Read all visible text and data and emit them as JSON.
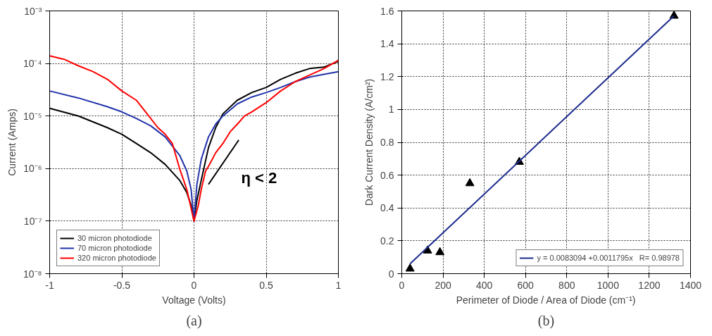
{
  "chart_data": [
    {
      "type": "line",
      "xlabel": "Voltage (Volts)",
      "ylabel": "Current (Amps)",
      "log": "y",
      "grid": true,
      "legend": "bottom left",
      "xlim": [
        -1,
        1
      ],
      "ylim": [
        1e-08,
        0.001
      ],
      "xticks": [
        -1,
        -0.5,
        0,
        0.5,
        1
      ],
      "yticks": [
        {
          "value": 1e-08,
          "label": "10⁻⁸"
        },
        {
          "value": 1e-07,
          "label": "10⁻⁷"
        },
        {
          "value": 1e-06,
          "label": "10⁻⁶"
        },
        {
          "value": 1e-05,
          "label": "10⁻⁵"
        },
        {
          "value": 0.0001,
          "label": "10⁻⁴"
        },
        {
          "value": 0.001,
          "label": "10⁻³"
        }
      ],
      "series": [
        {
          "name": "30 micron photodiode",
          "color": "#000000",
          "x": [
            -1,
            -0.8,
            -0.6,
            -0.5,
            -0.4,
            -0.3,
            -0.2,
            -0.1,
            -0.05,
            -0.02,
            0,
            0.02,
            0.05,
            0.1,
            0.15,
            0.2,
            0.3,
            0.4,
            0.5,
            0.6,
            0.7,
            0.8,
            0.9,
            1
          ],
          "values": [
            1.4e-05,
            1e-05,
            6e-06,
            4.5e-06,
            3e-06,
            2e-06,
            1.2e-06,
            6e-07,
            3.5e-07,
            2e-07,
            1e-07,
            2.5e-07,
            6e-07,
            2.5e-06,
            6e-06,
            1.1e-05,
            2e-05,
            2.8e-05,
            3.5e-05,
            5e-05,
            6.5e-05,
            8e-05,
            8.5e-05,
            0.00011
          ]
        },
        {
          "name": "70 micron photodiode",
          "color": "#2233aa",
          "x": [
            -1,
            -0.8,
            -0.6,
            -0.5,
            -0.4,
            -0.3,
            -0.2,
            -0.1,
            -0.05,
            -0.02,
            0,
            0.02,
            0.05,
            0.1,
            0.15,
            0.2,
            0.3,
            0.4,
            0.5,
            0.6,
            0.7,
            0.8,
            0.9,
            1
          ],
          "values": [
            3e-05,
            2.2e-05,
            1.5e-05,
            1.2e-05,
            9e-06,
            6.5e-06,
            4e-06,
            1.8e-06,
            9e-07,
            4e-07,
            1e-07,
            5e-07,
            1.5e-06,
            4e-06,
            7e-06,
            1e-05,
            1.7e-05,
            2.3e-05,
            2.8e-05,
            3.5e-05,
            4.5e-05,
            5.5e-05,
            6.2e-05,
            7e-05
          ]
        },
        {
          "name": "320 micron photodiode",
          "color": "#ff0000",
          "x": [
            -1,
            -0.9,
            -0.8,
            -0.7,
            -0.6,
            -0.5,
            -0.4,
            -0.3,
            -0.25,
            -0.2,
            -0.15,
            -0.1,
            -0.05,
            0,
            0.03,
            0.05,
            0.08,
            0.1,
            0.15,
            0.2,
            0.25,
            0.3,
            0.35,
            0.4,
            0.5,
            0.6,
            0.7,
            0.8,
            0.9,
            1
          ],
          "values": [
            0.00014,
            0.00012,
            9e-05,
            7e-05,
            5e-05,
            3e-05,
            2e-05,
            9e-06,
            6e-06,
            4.5e-06,
            3e-06,
            1e-06,
            4e-07,
            1e-07,
            2e-07,
            4e-07,
            9e-07,
            1.1e-06,
            2e-06,
            3e-06,
            5e-06,
            7e-06,
            1e-05,
            1.2e-05,
            1.8e-05,
            3e-05,
            4.5e-05,
            6e-05,
            8e-05,
            0.000115
          ]
        },
        {
          "color": "#000000",
          "x": [
            0.1,
            0.31
          ],
          "values": [
            5e-07,
            3.5e-06
          ]
        }
      ],
      "annotations": [
        {
          "text": "η < 2",
          "x": 0.205,
          "y": 1.32e-06
        },
        "(a)"
      ]
    },
    {
      "type": "scatter",
      "xlabel": "Perimeter of Diode / Area of Diode (cm⁻¹)",
      "ylabel": "Dark Current Density (A/cm²)",
      "grid": true,
      "legend": "bottom right",
      "xlim": [
        0,
        1400
      ],
      "ylim": [
        0,
        1.6
      ],
      "xticks": [
        0,
        200,
        400,
        600,
        800,
        1000,
        1200,
        1400
      ],
      "yticks": [
        0,
        0.2,
        0.4,
        0.6,
        0.8,
        1,
        1.2,
        1.4,
        1.6
      ],
      "series": [
        {
          "color": "#000000",
          "marker": "triangle",
          "x": [
            40,
            125,
            185,
            330,
            570,
            1320
          ],
          "values": [
            0.03,
            0.14,
            0.13,
            0.55,
            0.68,
            1.57
          ]
        },
        {
          "type": "line",
          "name": "y = 0.0083094 +0.0011795x   R= 0.98978",
          "color": "#1c2c8c",
          "x": [
            40,
            1320
          ],
          "values": [
            0.06,
            1.57
          ]
        }
      ],
      "annotations": [
        "(b)"
      ]
    }
  ]
}
